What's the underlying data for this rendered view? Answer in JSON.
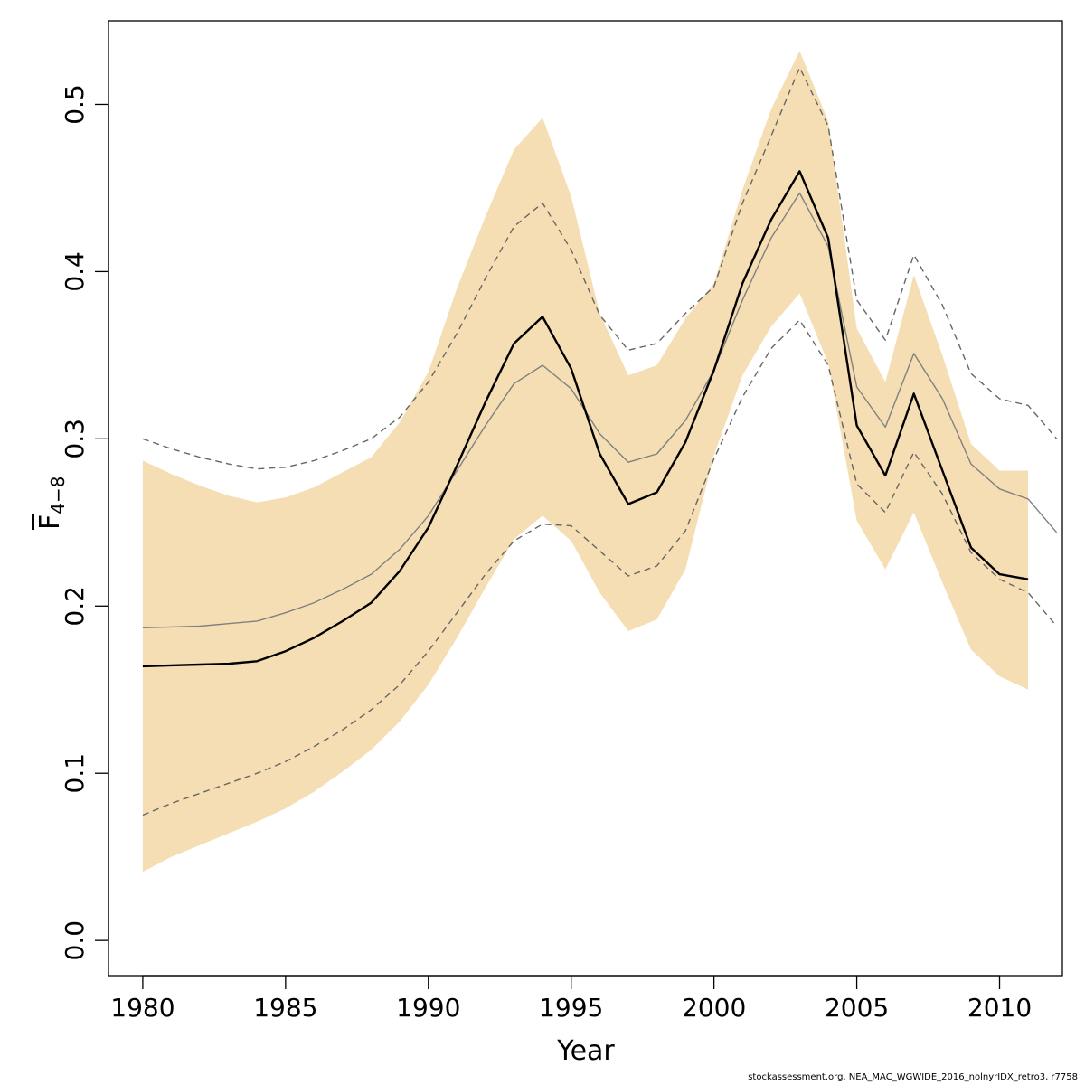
{
  "chart_data": {
    "type": "line",
    "xlabel": "Year",
    "ylabel": {
      "main": "F",
      "subscript": "4−8"
    },
    "xlim": [
      1978.8,
      2012.2
    ],
    "ylim": [
      -0.021,
      0.55
    ],
    "xticks": [
      "1980",
      "1985",
      "1990",
      "1995",
      "2000",
      "2005",
      "2010"
    ],
    "yticks": [
      "0.0",
      "0.1",
      "0.2",
      "0.3",
      "0.4",
      "0.5"
    ],
    "colors": {
      "band": "#f5deb3",
      "estimate": "#000000",
      "retro": "#808080",
      "retro_dashed": "#666666"
    },
    "band": {
      "x": [
        1980,
        1981,
        1982,
        1983,
        1984,
        1985,
        1986,
        1987,
        1988,
        1989,
        1990,
        1991,
        1992,
        1993,
        1994,
        1995,
        1996,
        1997,
        1998,
        1999,
        2000,
        2001,
        2002,
        2003,
        2004,
        2005,
        2006,
        2007,
        2008,
        2009,
        2010,
        2011
      ],
      "upper": [
        0.287,
        0.279,
        0.272,
        0.266,
        0.262,
        0.265,
        0.271,
        0.28,
        0.289,
        0.31,
        0.34,
        0.39,
        0.433,
        0.473,
        0.492,
        0.445,
        0.375,
        0.338,
        0.344,
        0.372,
        0.393,
        0.449,
        0.497,
        0.532,
        0.49,
        0.366,
        0.334,
        0.398,
        0.35,
        0.297,
        0.281,
        0.281
      ],
      "lower": [
        0.041,
        0.05,
        0.057,
        0.064,
        0.071,
        0.079,
        0.089,
        0.101,
        0.114,
        0.131,
        0.153,
        0.181,
        0.211,
        0.24,
        0.254,
        0.239,
        0.208,
        0.185,
        0.192,
        0.222,
        0.29,
        0.338,
        0.367,
        0.387,
        0.345,
        0.251,
        0.222,
        0.256,
        0.214,
        0.174,
        0.158,
        0.15
      ]
    },
    "series": [
      {
        "x": [
          1980,
          1981,
          1982,
          1983,
          1984,
          1985,
          1986,
          1987,
          1988,
          1989,
          1990,
          1991,
          1992,
          1993,
          1994,
          1995,
          1996,
          1997,
          1998,
          1999,
          2000,
          2001,
          2002,
          2003,
          2004,
          2005,
          2006,
          2007,
          2008,
          2009,
          2010,
          2011
        ],
        "values": [
          0.164,
          0.1645,
          0.165,
          0.1655,
          0.167,
          0.173,
          0.181,
          0.191,
          0.202,
          0.221,
          0.247,
          0.284,
          0.322,
          0.357,
          0.373,
          0.342,
          0.291,
          0.261,
          0.268,
          0.298,
          0.341,
          0.393,
          0.431,
          0.46,
          0.42,
          0.308,
          0.278,
          0.327,
          0.281,
          0.235,
          0.219,
          0.216
        ],
        "style": "solid",
        "color": "#000000",
        "width": 2.4
      },
      {
        "x": [
          1980,
          1981,
          1982,
          1983,
          1984,
          1985,
          1986,
          1987,
          1988,
          1989,
          1990,
          1991,
          1992,
          1993,
          1994,
          1995,
          1996,
          1997,
          1998,
          1999,
          2000,
          2001,
          2002,
          2003,
          2004,
          2005,
          2006,
          2007,
          2008,
          2009,
          2010,
          2011,
          2012
        ],
        "values": [
          0.187,
          0.1875,
          0.188,
          0.1895,
          0.191,
          0.196,
          0.202,
          0.21,
          0.219,
          0.234,
          0.254,
          0.281,
          0.308,
          0.333,
          0.344,
          0.33,
          0.303,
          0.286,
          0.291,
          0.311,
          0.341,
          0.383,
          0.42,
          0.447,
          0.415,
          0.331,
          0.307,
          0.351,
          0.324,
          0.285,
          0.27,
          0.264,
          0.244
        ],
        "style": "solid",
        "color": "#808080",
        "width": 1.4
      },
      {
        "x": [
          1980,
          1981,
          1982,
          1983,
          1984,
          1985,
          1986,
          1987,
          1988,
          1989,
          1990,
          1991,
          1992,
          1993,
          1994,
          1995,
          1996,
          1997,
          1998,
          1999,
          2000,
          2001,
          2002,
          2003,
          2004,
          2005,
          2006,
          2007,
          2008,
          2009,
          2010,
          2011,
          2012
        ],
        "values": [
          0.3,
          0.294,
          0.289,
          0.285,
          0.282,
          0.283,
          0.287,
          0.293,
          0.3,
          0.313,
          0.334,
          0.363,
          0.396,
          0.427,
          0.441,
          0.413,
          0.374,
          0.353,
          0.357,
          0.375,
          0.391,
          0.441,
          0.481,
          0.522,
          0.487,
          0.383,
          0.359,
          0.41,
          0.38,
          0.339,
          0.324,
          0.32,
          0.3
        ],
        "style": "dashed",
        "color": "#666666",
        "width": 1.4
      },
      {
        "x": [
          1980,
          1981,
          1982,
          1983,
          1984,
          1985,
          1986,
          1987,
          1988,
          1989,
          1990,
          1991,
          1992,
          1993,
          1994,
          1995,
          1996,
          1997,
          1998,
          1999,
          2000,
          2001,
          2002,
          2003,
          2004,
          2005,
          2006,
          2007,
          2008,
          2009,
          2010,
          2011,
          2012
        ],
        "values": [
          0.075,
          0.082,
          0.088,
          0.094,
          0.1,
          0.107,
          0.116,
          0.126,
          0.138,
          0.153,
          0.173,
          0.196,
          0.219,
          0.239,
          0.249,
          0.248,
          0.233,
          0.218,
          0.224,
          0.245,
          0.288,
          0.325,
          0.354,
          0.371,
          0.344,
          0.273,
          0.256,
          0.292,
          0.267,
          0.232,
          0.216,
          0.208,
          0.188
        ],
        "style": "dashed",
        "color": "#666666",
        "width": 1.4
      }
    ]
  },
  "footer": "stockassessment.org, NEA_MAC_WGWIDE_2016_nolnyrIDX_retro3, r7758"
}
